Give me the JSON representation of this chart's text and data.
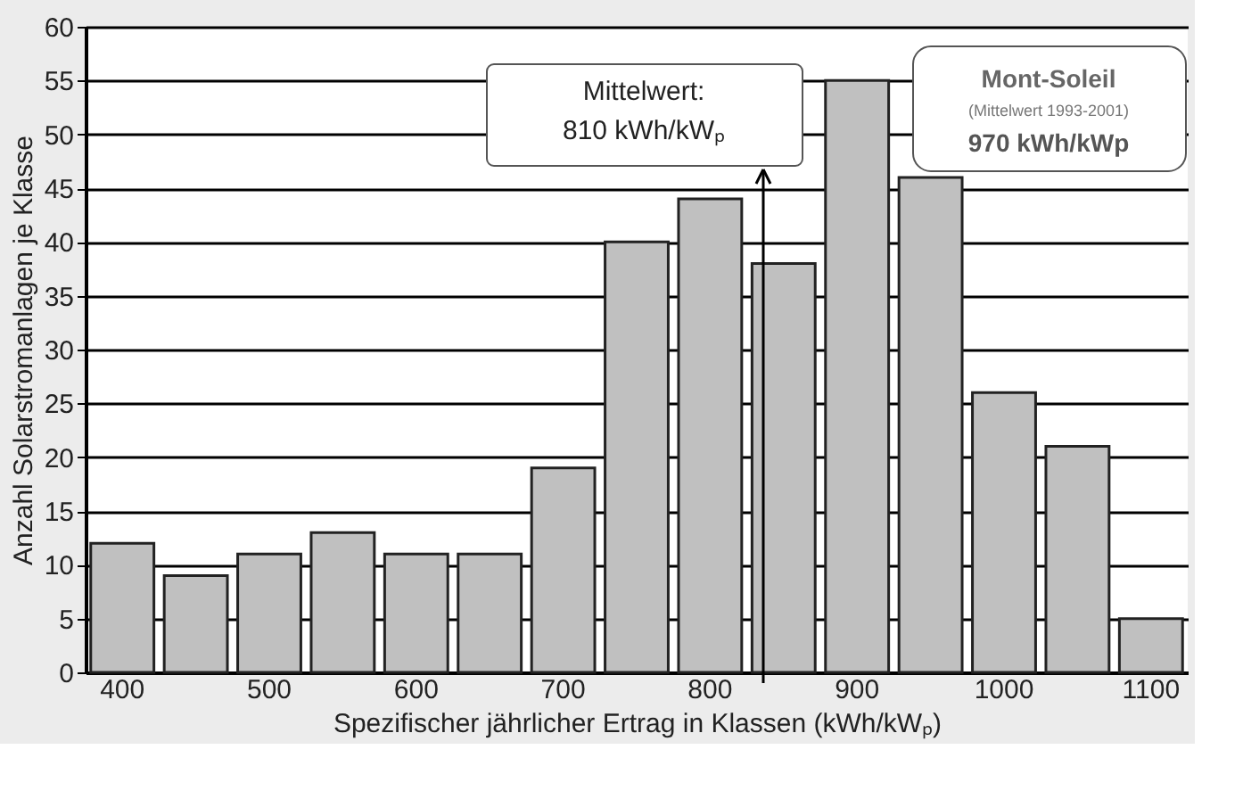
{
  "chart_data": {
    "type": "bar",
    "xlabel": "Spezifischer jährlicher Ertrag in Klassen (kWh/kWₚ)",
    "ylabel": "Anzahl Solarstromanlagen je Klasse",
    "categories": [
      "400",
      null,
      "500",
      null,
      "600",
      null,
      "700",
      null,
      "800",
      null,
      "900",
      null,
      "1000",
      null,
      "1100"
    ],
    "values": [
      12,
      9,
      11,
      13,
      11,
      11,
      19,
      40,
      44,
      38,
      55,
      46,
      26,
      21,
      5
    ],
    "color": "#c0c0c0",
    "ylim": [
      0,
      60
    ],
    "yticks": [
      0,
      5,
      10,
      15,
      20,
      25,
      30,
      35,
      40,
      45,
      50,
      55,
      60
    ],
    "grid": "y",
    "annotations": [
      "Mittelwert:",
      "810 kWh/kWₚ",
      "Mont-Soleil",
      "(Mittelwert 1993-2001)",
      "970 kWh/kWp"
    ]
  }
}
